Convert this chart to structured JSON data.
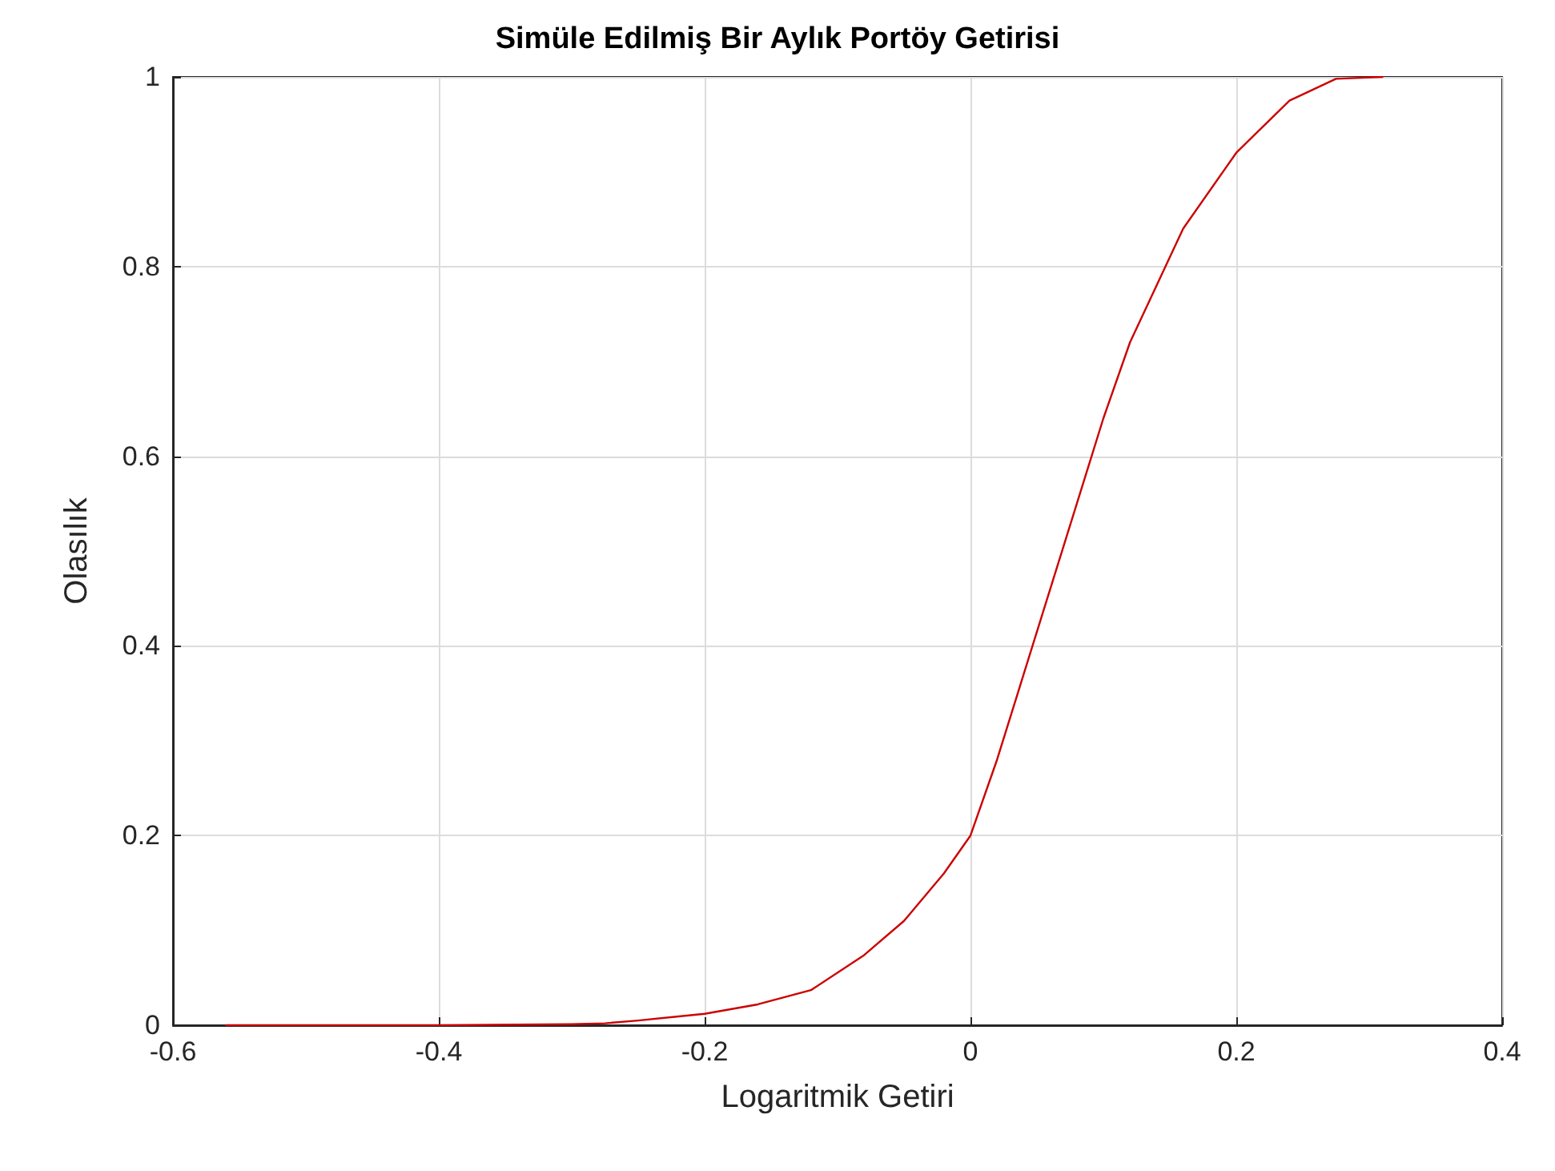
{
  "chart_data": {
    "type": "line",
    "title": "Simüle Edilmiş Bir Aylık Portöy Getirisi",
    "xlabel": "Logaritmik Getiri",
    "ylabel": "Olasılık",
    "x": [
      -0.56,
      -0.4,
      -0.3,
      -0.275,
      -0.25,
      -0.2,
      -0.16,
      -0.12,
      -0.08,
      -0.05,
      -0.02,
      0,
      0.02,
      0.04,
      0.06,
      0.08,
      0.1,
      0.12,
      0.16,
      0.2,
      0.24,
      0.275,
      0.31
    ],
    "series": [
      {
        "color": "#cc0000",
        "values": [
          0,
          0,
          0.001,
          0.002,
          0.005,
          0.012,
          0.022,
          0.037,
          0.074,
          0.11,
          0.16,
          0.2,
          0.28,
          0.37,
          0.46,
          0.55,
          0.64,
          0.72,
          0.84,
          0.92,
          0.975,
          0.998,
          1
        ]
      }
    ],
    "xlim": [
      -0.6,
      0.4
    ],
    "xticks": [
      -0.6,
      -0.4,
      -0.2,
      0,
      0.2,
      0.4
    ],
    "ylim": [
      0,
      1
    ],
    "yticks": [
      0,
      0.2,
      0.4,
      0.6,
      0.8,
      1
    ],
    "grid": true,
    "marker": "none",
    "line_style": "solid"
  }
}
